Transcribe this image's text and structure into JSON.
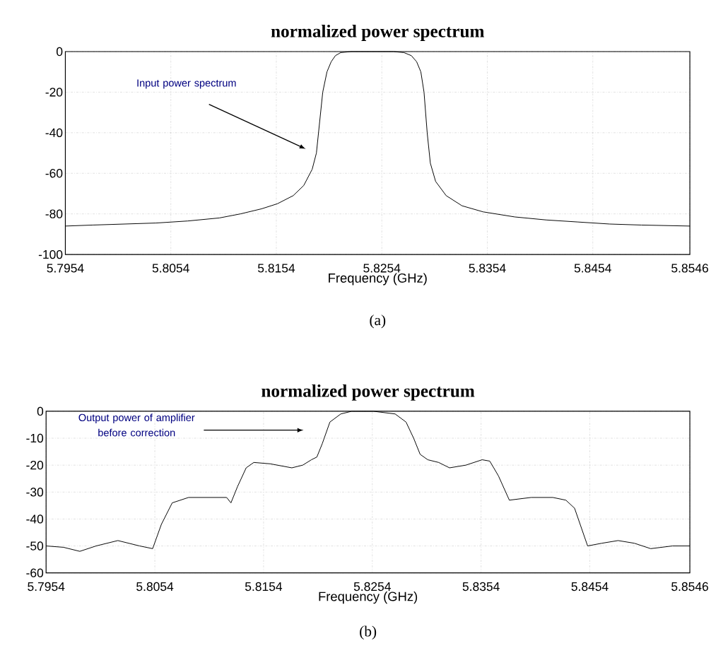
{
  "chart_data": [
    {
      "type": "line",
      "title": "normalized power spectrum",
      "xlabel": "Frequency (GHz)",
      "color": "#000000",
      "grid": true,
      "line_style": "solid",
      "xlim": [
        5.7954,
        5.8546
      ],
      "ylim": [
        -100,
        0
      ],
      "xticks": [
        5.7954,
        5.8054,
        5.8154,
        5.8254,
        5.8354,
        5.8454,
        5.8546
      ],
      "yticks": [
        -100,
        -80,
        -60,
        -40,
        -20,
        0
      ],
      "x": [
        5.7954,
        5.798,
        5.801,
        5.804,
        5.807,
        5.81,
        5.812,
        5.814,
        5.8155,
        5.817,
        5.818,
        5.8188,
        5.8192,
        5.8195,
        5.8198,
        5.8202,
        5.8206,
        5.821,
        5.8215,
        5.8225,
        5.8235,
        5.8245,
        5.8255,
        5.8265,
        5.8275,
        5.8282,
        5.8287,
        5.8291,
        5.8294,
        5.8297,
        5.83,
        5.8305,
        5.8315,
        5.833,
        5.835,
        5.838,
        5.841,
        5.844,
        5.847,
        5.85,
        5.8546
      ],
      "values": [
        -86,
        -85.5,
        -85,
        -84.5,
        -83.5,
        -82,
        -80,
        -77.5,
        -75,
        -71,
        -66,
        -58,
        -50,
        -35,
        -20,
        -10,
        -5,
        -2,
        -0.5,
        0,
        0,
        0,
        0,
        0,
        -0.5,
        -2,
        -5,
        -10,
        -20,
        -40,
        -55,
        -64,
        -71,
        -76,
        -79,
        -81.5,
        -83,
        -84,
        -85,
        -85.5,
        -86
      ],
      "annotations": [
        "Input power spectrum",
        "(a)"
      ]
    },
    {
      "type": "line",
      "title": "normalized power spectrum",
      "xlabel": "Frequency (GHz)",
      "color": "#000000",
      "grid": true,
      "line_style": "solid",
      "xlim": [
        5.7954,
        5.8546
      ],
      "ylim": [
        -60,
        0
      ],
      "xticks": [
        5.7954,
        5.8054,
        5.8154,
        5.8254,
        5.8354,
        5.8454,
        5.8546
      ],
      "yticks": [
        -60,
        -50,
        -40,
        -30,
        -20,
        -10,
        0
      ],
      "x": [
        5.7954,
        5.797,
        5.7985,
        5.8,
        5.802,
        5.804,
        5.8052,
        5.806,
        5.807,
        5.8085,
        5.81,
        5.812,
        5.8124,
        5.813,
        5.8138,
        5.8145,
        5.816,
        5.818,
        5.819,
        5.8198,
        5.8203,
        5.8208,
        5.8215,
        5.8225,
        5.8235,
        5.8255,
        5.8275,
        5.8285,
        5.8292,
        5.8298,
        5.8305,
        5.8315,
        5.8325,
        5.834,
        5.8355,
        5.8362,
        5.837,
        5.838,
        5.84,
        5.842,
        5.8432,
        5.844,
        5.8452,
        5.8465,
        5.848,
        5.8495,
        5.851,
        5.853,
        5.8546
      ],
      "values": [
        -50,
        -50.5,
        -52,
        -50,
        -48,
        -50,
        -51,
        -42,
        -34,
        -32,
        -32,
        -32,
        -34,
        -28,
        -21,
        -19,
        -19.5,
        -21,
        -20,
        -18,
        -17,
        -12,
        -4,
        -1,
        0,
        0,
        -1,
        -4,
        -10,
        -16,
        -18,
        -19,
        -21,
        -20,
        -18,
        -18.5,
        -24,
        -33,
        -32,
        -32,
        -33,
        -36,
        -50,
        -49,
        -48,
        -49,
        -51,
        -50,
        -50
      ],
      "annotations": [
        "Output power of amplifier before correction",
        "(b)"
      ]
    }
  ]
}
